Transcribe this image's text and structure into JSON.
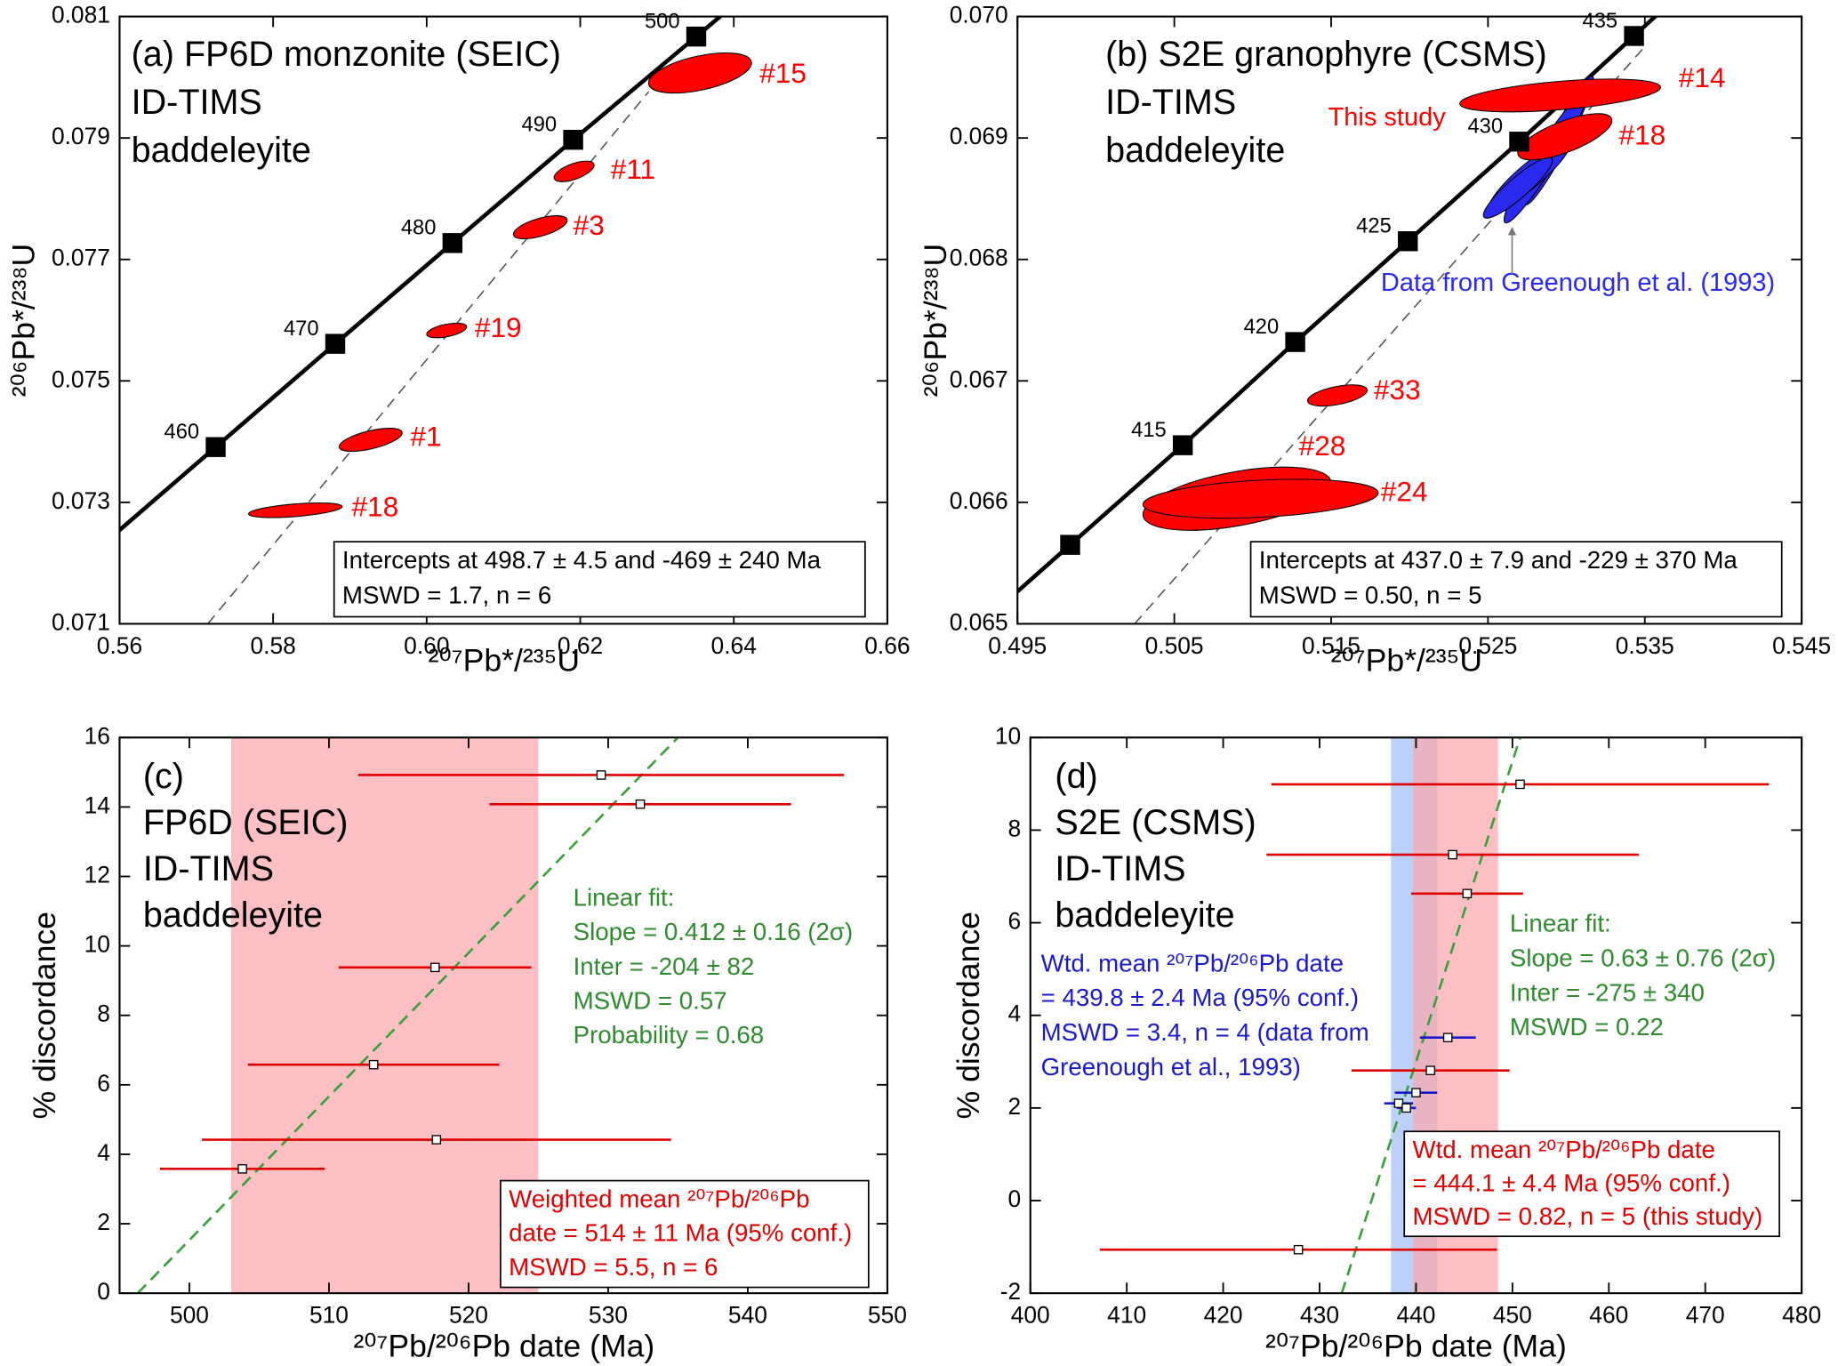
{
  "chart_data": [
    {
      "type": "concordia",
      "title_lines": [
        "(a) FP6D monzonite (SEIC)",
        "ID-TIMS",
        "baddeleyite"
      ],
      "xlabel": "²⁰⁷Pb*/²³⁵U",
      "ylabel": "²⁰⁶Pb*/²³⁸U",
      "xlim": [
        0.56,
        0.66
      ],
      "ylim": [
        0.071,
        0.081
      ],
      "xticks": [
        0.56,
        0.58,
        {
          "value": 0.6,
          "label": "0.60"
        },
        0.62,
        0.64,
        0.66
      ],
      "yticks": [
        0.071,
        0.073,
        0.075,
        0.077,
        0.079,
        0.081
      ],
      "concordia": {
        "color": "#000000",
        "ages": [
          460,
          470,
          480,
          490,
          500
        ],
        "x": [
          0.57252,
          0.58809,
          0.60336,
          0.61908,
          0.63511
        ],
        "y": [
          0.07391,
          0.07561,
          0.07727,
          0.07897,
          0.08067
        ]
      },
      "discordia": {
        "color": "#555555",
        "x": [
          0.5715,
          0.6289
        ],
        "y": [
          0.071,
          0.07976
        ]
      },
      "series": [
        {
          "color": "#ff0000",
          "labels": [
            "#15",
            "#11",
            "#3",
            "#19",
            "#1",
            "#18"
          ],
          "x": [
            0.6356,
            0.6192,
            0.6148,
            0.6026,
            0.5927,
            0.5829
          ],
          "y": [
            0.08007,
            0.07845,
            0.07753,
            0.07583,
            0.07403,
            0.07287
          ],
          "x_err": [
            0.0067,
            0.0026,
            0.0035,
            0.0026,
            0.0041,
            0.0061
          ],
          "y_err": [
            0.00033,
            0.00017,
            0.00019,
            0.00012,
            0.00019,
            0.00012
          ],
          "rho": [
            0.5,
            0.6,
            0.6,
            0.5,
            0.6,
            0.5
          ]
        }
      ],
      "annotations": [
        {
          "color": "#000000",
          "box": true,
          "lines": [
            "Intercepts at 498.7 ± 4.5 and -469 ± 240 Ma",
            "MSWD = 1.7, n = 6"
          ]
        }
      ]
    },
    {
      "type": "concordia",
      "title_lines": [
        "(b) S2E granophyre (CSMS)",
        "ID-TIMS",
        "baddeleyite"
      ],
      "xlabel": "²⁰⁷Pb*/²³⁵U",
      "ylabel": "²⁰⁶Pb*/²³⁸U",
      "xlim": [
        0.495,
        0.545
      ],
      "ylim": [
        0.065,
        0.07
      ],
      "xticks": [
        0.495,
        0.505,
        0.515,
        0.525,
        0.535,
        0.545
      ],
      "yticks": [
        0.065,
        0.066,
        0.067,
        0.068,
        0.069,
        {
          "value": 0.07,
          "label": "0.070"
        }
      ],
      "concordia": {
        "color": "#000000",
        "ages": [
          null,
          415,
          420,
          425,
          430,
          435
        ],
        "x": [
          0.49836,
          0.50554,
          0.51271,
          0.51989,
          0.52699,
          0.53431
        ],
        "y": [
          0.06565,
          0.06647,
          0.06732,
          0.06815,
          0.06897,
          0.06984
        ]
      },
      "discordia": {
        "color": "#555555",
        "x": [
          0.50247,
          0.53498
        ],
        "y": [
          0.065,
          0.06975
        ]
      },
      "series": [
        {
          "name": "Data from Greenough et al. (1993)",
          "color": "#2a2aee",
          "x": [
            0.52953,
            0.52863,
            0.52766,
            0.52691
          ],
          "y": [
            0.06898,
            0.06883,
            0.06869,
            0.06859
          ],
          "x_err": [
            0.0022,
            0.0026,
            0.0026,
            0.0022
          ],
          "y_err": [
            0.00053,
            0.00053,
            0.00029,
            0.00025
          ],
          "rho": [
            0.95,
            0.95,
            0.9,
            0.9
          ]
        },
        {
          "name": "This study",
          "color": "#ff0000",
          "labels": [
            "#14",
            "#18",
            "#33",
            "#28",
            "#24"
          ],
          "x": [
            0.5296,
            0.5299,
            0.5154,
            0.509,
            0.5105
          ],
          "y": [
            0.06935,
            0.06901,
            0.06688,
            0.06603,
            0.06603
          ],
          "x_err": [
            0.0064,
            0.003,
            0.0019,
            0.006,
            0.0075
          ],
          "y_err": [
            0.000135,
            0.00019,
            8.7e-05,
            0.00026,
            0.00016
          ],
          "rho": [
            0.5,
            0.7,
            0.5,
            0.5,
            0.3
          ]
        }
      ],
      "annotations": [
        {
          "color": "#000000",
          "box": true,
          "lines": [
            "Intercepts at 437.0 ± 7.9 and -229 ± 370 Ma",
            "MSWD = 0.50, n = 5"
          ]
        }
      ]
    },
    {
      "type": "scatter",
      "title_lines": [
        "(c)",
        "FP6D (SEIC)",
        "ID-TIMS",
        "baddeleyite"
      ],
      "xlabel": "²⁰⁷Pb/²⁰⁶Pb date (Ma)",
      "ylabel": "% discordance",
      "xlim": [
        495,
        550
      ],
      "ylim": [
        0,
        16
      ],
      "xticks": [
        500,
        510,
        520,
        530,
        540,
        550
      ],
      "yticks": [
        0,
        2,
        4,
        6,
        8,
        10,
        12,
        14,
        16
      ],
      "bands": [
        {
          "color": "#f9a9b0",
          "x": [
            503,
            525
          ]
        }
      ],
      "fit": {
        "color": "#3aa03a",
        "x": [
          496.3,
          535.0
        ],
        "y": [
          0,
          16
        ]
      },
      "series": [
        {
          "color": "#e00000",
          "x": [
            529.5,
            532.3,
            517.6,
            513.2,
            517.7,
            503.8
          ],
          "y": [
            14.92,
            14.08,
            9.38,
            6.58,
            4.42,
            3.58
          ],
          "x_err": [
            17.4,
            10.8,
            6.9,
            9.0,
            16.8,
            5.9
          ]
        }
      ],
      "annotations": [
        {
          "color": "#2e8b2e",
          "lines": [
            "Linear fit:",
            "Slope = 0.412 ± 0.16 (2σ)",
            "Inter = -204 ± 82",
            "MSWD = 0.57",
            "Probability = 0.68"
          ]
        },
        {
          "color": "#e00000",
          "box": true,
          "lines": [
            "Weighted mean ²⁰⁷Pb/²⁰⁶Pb",
            "date = 514 ± 11 Ma (95% conf.)",
            "MSWD = 5.5, n = 6"
          ]
        }
      ]
    },
    {
      "type": "scatter",
      "title_lines": [
        "(d)",
        "S2E (CSMS)",
        "ID-TIMS",
        "baddeleyite"
      ],
      "xlabel": "²⁰⁷Pb/²⁰⁶Pb date (Ma)",
      "ylabel": "% discordance",
      "xlim": [
        400,
        480
      ],
      "ylim": [
        -2,
        10
      ],
      "xticks": [
        400,
        410,
        420,
        430,
        440,
        450,
        460,
        470,
        480
      ],
      "yticks": [
        -2,
        0,
        2,
        4,
        6,
        8,
        10
      ],
      "bands": [
        {
          "color": "#a7c0f5",
          "x": [
            437.4,
            442.2
          ]
        },
        {
          "color": "#f9a9b0",
          "x": [
            439.7,
            448.5
          ]
        }
      ],
      "fit": {
        "color": "#3aa03a",
        "x": [
          432.3,
          450.8
        ],
        "y": [
          -2,
          10
        ]
      },
      "series": [
        {
          "color": "#e00000",
          "x": [
            450.8,
            443.8,
            445.3,
            441.5,
            427.8
          ],
          "y": [
            8.99,
            7.47,
            6.63,
            2.81,
            -1.06
          ],
          "x_err": [
            25.8,
            19.3,
            5.8,
            8.2,
            20.6
          ]
        },
        {
          "color": "#1a1acc",
          "x": [
            443.3,
            440.0,
            438.2,
            439.0
          ],
          "y": [
            3.52,
            2.33,
            2.1,
            2.0
          ],
          "x_err": [
            2.9,
            2.2,
            1.5,
            1.0
          ]
        }
      ],
      "annotations": [
        {
          "color": "#1a1acc",
          "lines": [
            "Wtd. mean ²⁰⁷Pb/²⁰⁶Pb date",
            "= 439.8 ± 2.4 Ma (95% conf.)",
            "MSWD = 3.4, n = 4 (data from",
            "Greenough et al., 1993)"
          ]
        },
        {
          "color": "#2e8b2e",
          "lines": [
            "Linear fit:",
            "Slope = 0.63 ± 0.76 (2σ)",
            "Inter = -275 ± 340",
            "MSWD = 0.22"
          ]
        },
        {
          "color": "#e00000",
          "box": true,
          "lines": [
            "Wtd. mean ²⁰⁷Pb/²⁰⁶Pb date",
            "= 444.1 ± 4.4 Ma (95% conf.)",
            "MSWD = 0.82, n = 5 (this study)"
          ]
        }
      ]
    }
  ]
}
